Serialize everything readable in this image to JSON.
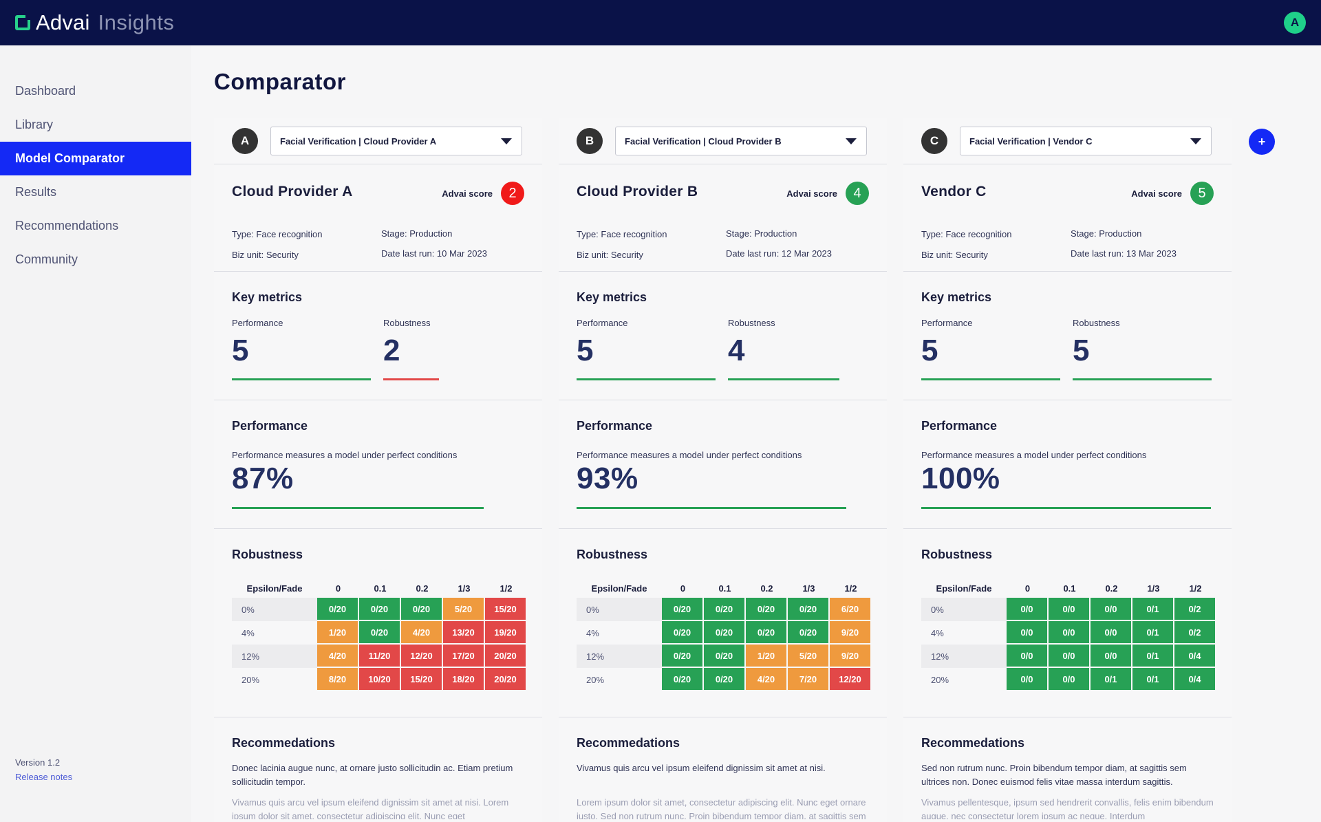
{
  "app": {
    "brand": "Advai",
    "product": "Insights",
    "avatar_initial": "A"
  },
  "sidebar": {
    "items": [
      {
        "label": "Dashboard",
        "active": false
      },
      {
        "label": "Library",
        "active": false
      },
      {
        "label": "Model Comparator",
        "active": true
      },
      {
        "label": "Results",
        "active": false
      },
      {
        "label": "Recommendations",
        "active": false
      },
      {
        "label": "Community",
        "active": false
      }
    ],
    "version": "Version 1.2",
    "release_notes": "Release notes"
  },
  "page": {
    "title": "Comparator",
    "add_label": "+"
  },
  "labels": {
    "advai_score": "Advai score",
    "key_metrics": "Key metrics",
    "performance": "Performance",
    "robustness": "Robustness",
    "performance_heading": "Performance",
    "performance_desc": "Performance measures a model under perfect conditions",
    "robustness_heading": "Robustness",
    "recommendations_heading": "Recommedations",
    "grid_corner": "Epsilon/Fade",
    "grid_cols": [
      "0",
      "0.1",
      "0.2",
      "1/3",
      "1/2"
    ],
    "grid_rows": [
      "0%",
      "4%",
      "12%",
      "20%"
    ]
  },
  "colors": {
    "green": "#27a155",
    "orange": "#ef9a3e",
    "red": "#e24848",
    "badge_red": "#f01a1a",
    "badge_green": "#27a155"
  },
  "columns": [
    {
      "letter": "A",
      "select_value": "Facial Verification | Cloud Provider A",
      "name": "Cloud Provider A",
      "score": "2",
      "type": "Type: Face recognition",
      "biz_unit": "Biz unit: Security",
      "stage": "Stage: Production",
      "date_last_run": "Date last run: 10 Mar 2023",
      "performance": "5",
      "robustness": "2",
      "performance_pct": "87%",
      "grid": [
        [
          "0/20",
          "0/20",
          "0/20",
          "5/20",
          "15/20"
        ],
        [
          "1/20",
          "0/20",
          "4/20",
          "13/20",
          "19/20"
        ],
        [
          "4/20",
          "11/20",
          "12/20",
          "17/20",
          "20/20"
        ],
        [
          "8/20",
          "10/20",
          "15/20",
          "18/20",
          "20/20"
        ]
      ],
      "grid_colors": [
        [
          "green",
          "green",
          "green",
          "orange",
          "red"
        ],
        [
          "orange",
          "green",
          "orange",
          "red",
          "red"
        ],
        [
          "orange",
          "red",
          "red",
          "red",
          "red"
        ],
        [
          "orange",
          "red",
          "red",
          "red",
          "red"
        ]
      ],
      "rec_1": "Donec lacinia augue nunc, at ornare justo sollicitudin ac. Etiam pretium sollicitudin tempor.",
      "rec_2": "Vivamus quis arcu vel ipsum eleifend dignissim sit amet at nisi. Lorem ipsum dolor sit amet, consectetur adipiscing elit. Nunc eget"
    },
    {
      "letter": "B",
      "select_value": "Facial Verification | Cloud Provider B",
      "name": "Cloud Provider B",
      "score": "4",
      "type": "Type: Face recognition",
      "biz_unit": "Biz unit: Security",
      "stage": "Stage: Production",
      "date_last_run": "Date last run: 12 Mar 2023",
      "performance": "5",
      "robustness": "4",
      "performance_pct": "93%",
      "grid": [
        [
          "0/20",
          "0/20",
          "0/20",
          "0/20",
          "6/20"
        ],
        [
          "0/20",
          "0/20",
          "0/20",
          "0/20",
          "9/20"
        ],
        [
          "0/20",
          "0/20",
          "1/20",
          "5/20",
          "9/20"
        ],
        [
          "0/20",
          "0/20",
          "4/20",
          "7/20",
          "12/20"
        ]
      ],
      "grid_colors": [
        [
          "green",
          "green",
          "green",
          "green",
          "orange"
        ],
        [
          "green",
          "green",
          "green",
          "green",
          "orange"
        ],
        [
          "green",
          "green",
          "orange",
          "orange",
          "orange"
        ],
        [
          "green",
          "green",
          "orange",
          "orange",
          "red"
        ]
      ],
      "rec_1": "Vivamus quis arcu vel ipsum eleifend dignissim sit amet at nisi.",
      "rec_2": "Lorem ipsum dolor sit amet, consectetur adipiscing elit. Nunc eget ornare justo. Sed non rutrum nunc. Proin bibendum tempor diam, at sagittis sem ultrices non. Donec euismod felis vitae massa"
    },
    {
      "letter": "C",
      "select_value": "Facial Verification | Vendor C",
      "name": "Vendor C",
      "score": "5",
      "type": "Type: Face recognition",
      "biz_unit": "Biz unit: Security",
      "stage": "Stage: Production",
      "date_last_run": "Date last run: 13 Mar 2023",
      "performance": "5",
      "robustness": "5",
      "performance_pct": "100%",
      "grid": [
        [
          "0/0",
          "0/0",
          "0/0",
          "0/1",
          "0/2"
        ],
        [
          "0/0",
          "0/0",
          "0/0",
          "0/1",
          "0/2"
        ],
        [
          "0/0",
          "0/0",
          "0/0",
          "0/1",
          "0/4"
        ],
        [
          "0/0",
          "0/0",
          "0/1",
          "0/1",
          "0/4"
        ]
      ],
      "grid_colors": [
        [
          "green",
          "green",
          "green",
          "green",
          "green"
        ],
        [
          "green",
          "green",
          "green",
          "green",
          "green"
        ],
        [
          "green",
          "green",
          "green",
          "green",
          "green"
        ],
        [
          "green",
          "green",
          "green",
          "green",
          "green"
        ]
      ],
      "rec_1": "Sed non rutrum nunc. Proin bibendum tempor diam, at sagittis sem ultrices non. Donec euismod felis vitae massa interdum sagittis.",
      "rec_2": "Vivamus pellentesque, ipsum sed hendrerit convallis, felis enim bibendum augue, nec consectetur lorem ipsum ac neque. Interdum"
    }
  ]
}
